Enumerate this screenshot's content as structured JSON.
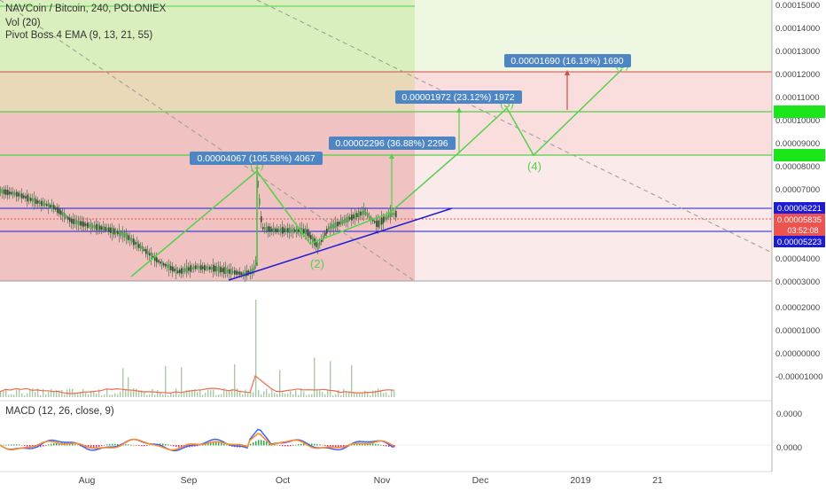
{
  "header": {
    "symbol_line": "NAVCoin / Bitcoin, 240, POLONIEX",
    "vol_label": "Vol (20)",
    "ema_label": "Pivot Boss 4 EMA (9, 13, 21, 55)",
    "macd_label": "MACD (12, 26, close, 9)"
  },
  "price_axis": {
    "ticks": [
      "0.00015000",
      "0.00014000",
      "0.00013000",
      "0.00012000",
      "0.00011000",
      "0.00010000",
      "0.00009000",
      "0.00008000",
      "0.00007000",
      "0.00006000",
      "0.00005000",
      "0.00004000",
      "0.00003000"
    ],
    "badges": [
      {
        "value": "0.00006221",
        "color": "#1c1cd8"
      },
      {
        "value": "0.00005835",
        "color": "#ef5350"
      },
      {
        "value": "03:52:08",
        "color": "#ef5350"
      },
      {
        "value": "0.00005223",
        "color": "#1c1cd8"
      },
      {
        "value": "",
        "color": "#19e619"
      },
      {
        "value": "",
        "color": "#19e619"
      }
    ]
  },
  "volume_axis": {
    "ticks": [
      "0.00002000",
      "0.00001000",
      "0.00000000",
      "-0.00001000"
    ]
  },
  "macd_axis": {
    "ticks": [
      "0.0000",
      "0.0000"
    ]
  },
  "time_axis": {
    "ticks": [
      "Aug",
      "Sep",
      "Oct",
      "Nov",
      "Dec",
      "2019",
      "21"
    ]
  },
  "annotations": {
    "targets": [
      {
        "text": "0.00004067 (105.58%) 4067",
        "color": "#4e86c3"
      },
      {
        "text": "0.00002296 (36.88%) 2296",
        "color": "#4e86c3"
      },
      {
        "text": "0.00001972 (23.12%) 1972",
        "color": "#4e86c3"
      },
      {
        "text": "0.00001690 (16.19%) 1690",
        "color": "#4e86c3"
      }
    ],
    "waves": [
      "(1)",
      "(2)",
      "(3)",
      "(4)",
      "(5)"
    ]
  },
  "colors": {
    "wave_green": "#52d14a",
    "channel_blue": "#1c1cd8",
    "red_zone": "#f2b8b8",
    "green_zone": "#d9efbd",
    "macd_line": "#2962ff",
    "signal_line": "#ff8a2b",
    "candle": "#3d7d3d"
  },
  "chart_data": {
    "type": "line",
    "title": "NAVCoin / Bitcoin, 240, POLONIEX",
    "ylim": [
      3e-05,
      0.00015
    ],
    "x_labels": [
      "Aug",
      "Sep",
      "Oct",
      "Nov",
      "Dec",
      "2019",
      "21"
    ],
    "series": [
      {
        "name": "NAVCoin / Bitcoin",
        "x": [
          "Jul 01",
          "Jul 05",
          "Jul 10",
          "Jul 15",
          "Jul 20",
          "Jul 25",
          "Jul 31",
          "Aug 05",
          "Aug 10",
          "Aug 15",
          "Aug 20",
          "Aug 25",
          "Aug 31",
          "Sep 05",
          "Sep 10",
          "Sep 15",
          "Sep 20",
          "Sep 22",
          "Sep 24",
          "Sep 28",
          "Oct 03",
          "Oct 08",
          "Oct 12",
          "Oct 15",
          "Oct 20",
          "Oct 25",
          "Oct 28",
          "Nov 01",
          "Nov 04"
        ],
        "values": [
          6.9e-05,
          6.75e-05,
          6.45e-05,
          6.2e-05,
          5.6e-05,
          5.4e-05,
          5.25e-05,
          5e-05,
          4.4e-05,
          3.8e-05,
          3.4e-05,
          3.6e-05,
          3.55e-05,
          3.4e-05,
          3.3e-05,
          3.45e-05,
          3.8e-05,
          7.2e-05,
          5.3e-05,
          5.2e-05,
          5.2e-05,
          5.15e-05,
          4.5e-05,
          5.3e-05,
          5.65e-05,
          6e-05,
          5.45e-05,
          5.9e-05,
          5.9e-05
        ]
      }
    ],
    "levels": [
      {
        "label": "0.00006221",
        "value": 6.221e-05
      },
      {
        "label": "0.00005835",
        "value": 5.835e-05
      },
      {
        "label": "0.00005223",
        "value": 5.223e-05
      }
    ],
    "projections": [
      {
        "label": "0.00004067 (105.58%) 4067",
        "value": 4.067e-05,
        "percent": 105.58
      },
      {
        "label": "0.00002296 (36.88%) 2296",
        "value": 2.296e-05,
        "percent": 36.88
      },
      {
        "label": "0.00001972 (23.12%) 1972",
        "value": 1.972e-05,
        "percent": 23.12
      },
      {
        "label": "0.00001690 (16.19%) 1690",
        "value": 1.69e-05,
        "percent": 16.19
      }
    ]
  }
}
